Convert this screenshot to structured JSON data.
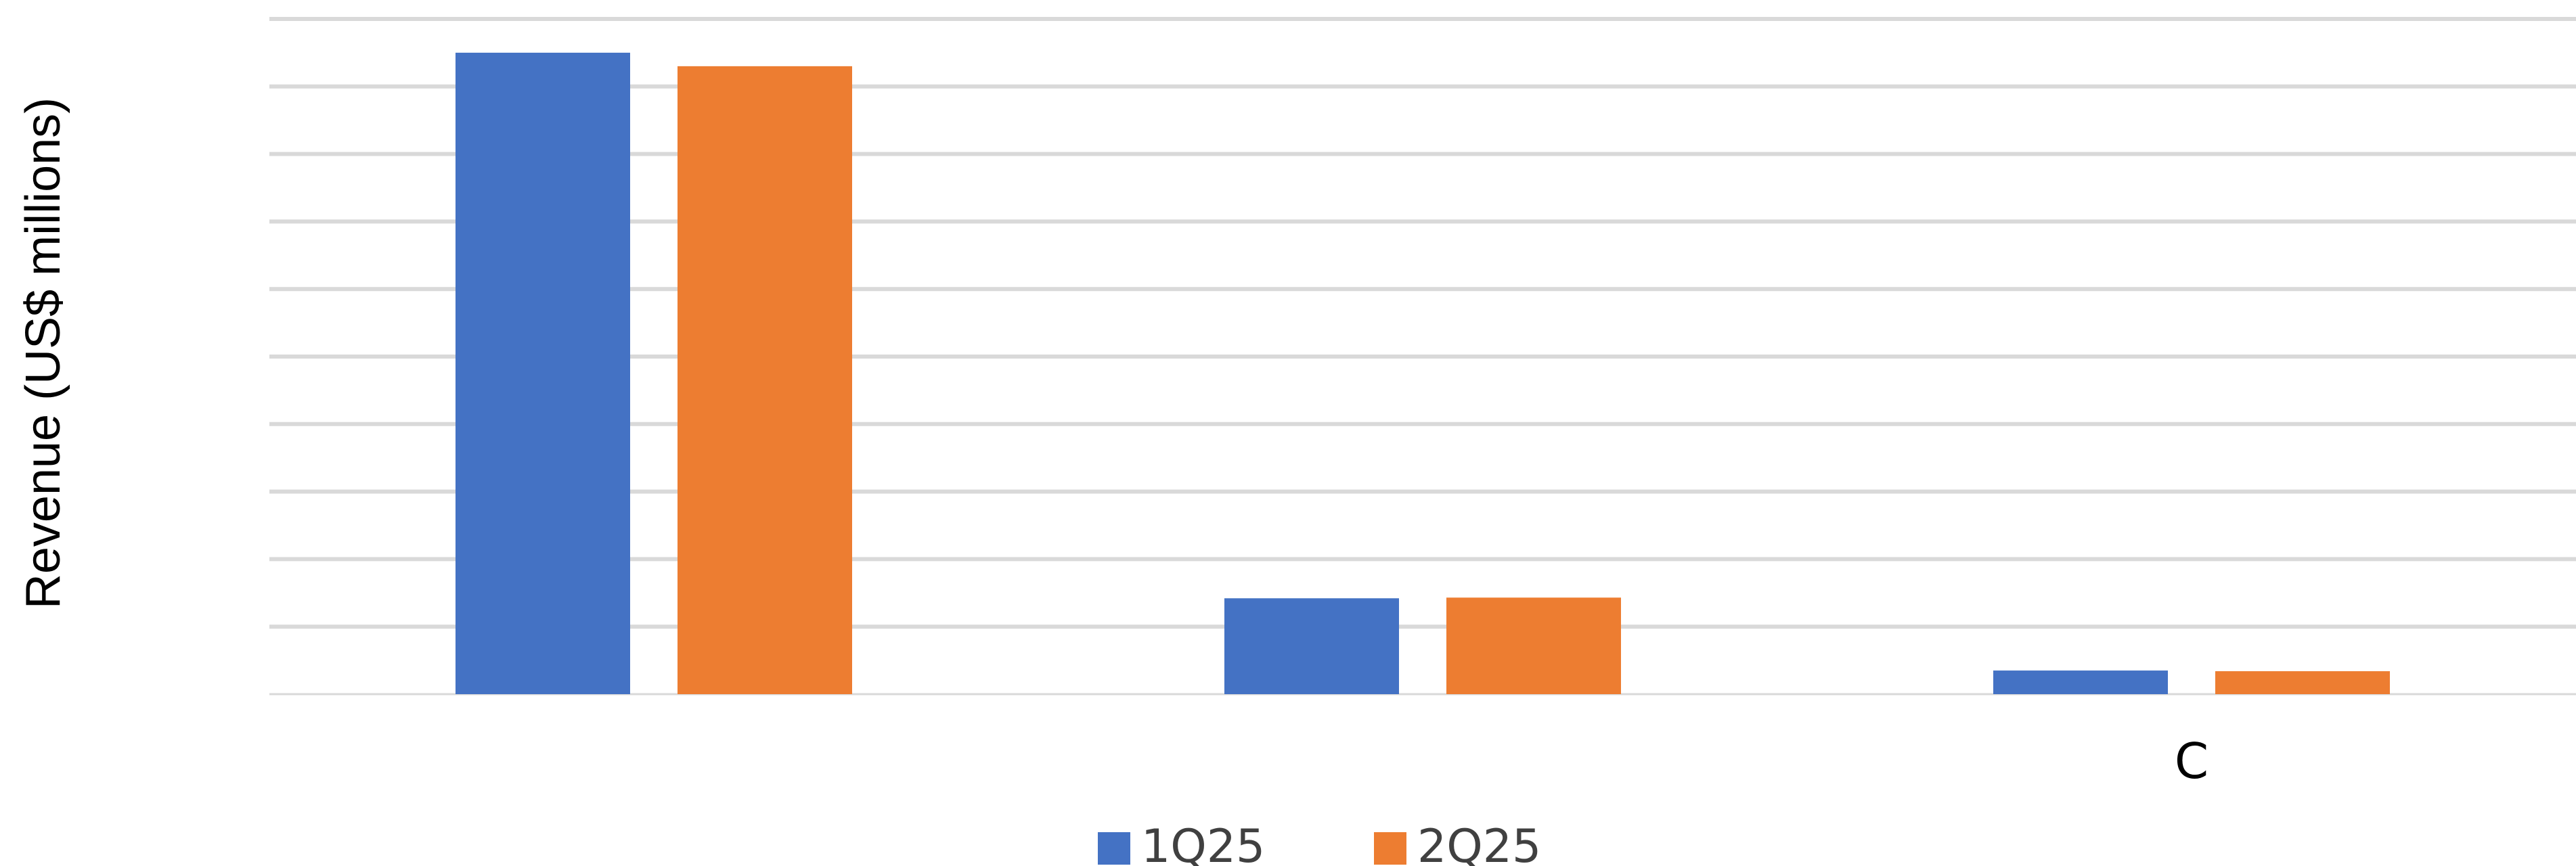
{
  "chart_data": {
    "type": "bar",
    "title": "",
    "xlabel": "",
    "ylabel": "Revenue (US$  millions)",
    "categories": [
      "",
      "",
      "C"
    ],
    "series": [
      {
        "name": "1Q25",
        "color": "#4472C4",
        "values": [
          9.5,
          1.42,
          0.35
        ]
      },
      {
        "name": "2Q25",
        "color": "#ED7D31",
        "values": [
          9.3,
          1.43,
          0.34
        ]
      }
    ],
    "ylim": [
      0,
      10
    ],
    "yticks": [
      0,
      1,
      2,
      3,
      4,
      5,
      6,
      7,
      8,
      9,
      10
    ],
    "grid": true,
    "legend_position": "bottom",
    "gridline_color": "#D9D9D9"
  }
}
